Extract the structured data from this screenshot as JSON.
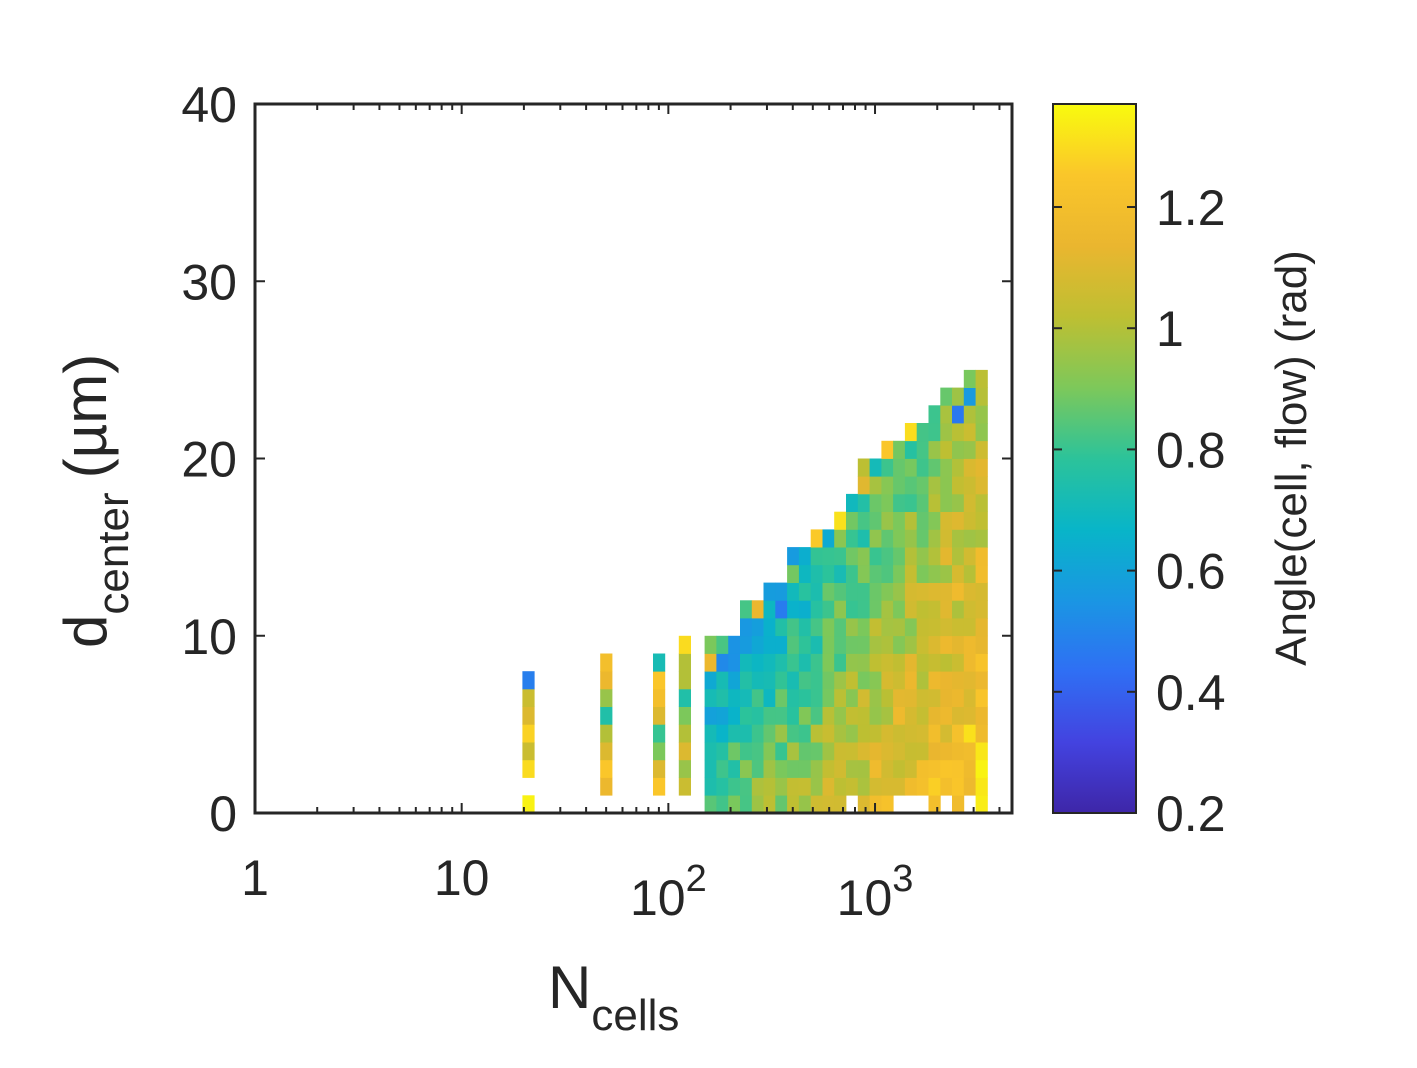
{
  "chart_data": {
    "type": "heatmap",
    "title": "",
    "xlabel": "N",
    "xlabel_sub": "cells",
    "ylabel": "d",
    "ylabel_sub": "center",
    "ylabel_unit": "(µm)",
    "x_scale": "log",
    "xlim": [
      1,
      4600
    ],
    "ylim": [
      0,
      40
    ],
    "x_ticks": [
      {
        "value": 1,
        "base": "1",
        "exp": ""
      },
      {
        "value": 10,
        "base": "10",
        "exp": ""
      },
      {
        "value": 100,
        "base": "10",
        "exp": "2"
      },
      {
        "value": 1000,
        "base": "10",
        "exp": "3"
      }
    ],
    "y_ticks": [
      "0",
      "10",
      "20",
      "30",
      "40"
    ],
    "colorbar": {
      "label": "Angle(cell, flow) (rad)",
      "range": [
        0.2,
        1.37
      ],
      "ticks": [
        "0.2",
        "0.4",
        "0.6",
        "0.8",
        "1",
        "1.2"
      ],
      "colormap": "parula"
    },
    "bin_width_log10": 0.057,
    "bin_height": 1,
    "grid": false,
    "cells": [
      [
        21,
        0,
        1.35
      ],
      [
        21,
        2,
        1.3
      ],
      [
        21,
        3,
        1.05
      ],
      [
        21,
        4,
        1.28
      ],
      [
        21,
        5,
        1.1
      ],
      [
        21,
        6,
        1.05
      ],
      [
        21,
        7,
        0.48
      ],
      [
        50,
        1,
        1.15
      ],
      [
        50,
        2,
        1.25
      ],
      [
        50,
        3,
        1.1
      ],
      [
        50,
        4,
        1.0
      ],
      [
        50,
        5,
        0.75
      ],
      [
        50,
        6,
        0.95
      ],
      [
        50,
        7,
        1.15
      ],
      [
        50,
        8,
        1.2
      ],
      [
        90,
        1,
        1.25
      ],
      [
        90,
        2,
        1.1
      ],
      [
        90,
        3,
        0.9
      ],
      [
        90,
        4,
        0.8
      ],
      [
        90,
        5,
        1.1
      ],
      [
        90,
        6,
        1.2
      ],
      [
        90,
        7,
        1.25
      ],
      [
        90,
        8,
        0.72
      ],
      [
        120,
        1,
        1.05
      ],
      [
        120,
        2,
        0.95
      ],
      [
        120,
        3,
        1.1
      ],
      [
        120,
        4,
        1.0
      ],
      [
        120,
        5,
        0.9
      ],
      [
        120,
        6,
        0.75
      ],
      [
        120,
        7,
        1.0
      ],
      [
        120,
        8,
        1.0
      ],
      [
        120,
        9,
        1.3
      ]
    ],
    "region": {
      "x_start": 160,
      "x_end": 3600,
      "top_edge": [
        [
          160,
          10
        ],
        [
          220,
          12
        ],
        [
          300,
          13
        ],
        [
          400,
          15
        ],
        [
          500,
          16
        ],
        [
          600,
          17
        ],
        [
          700,
          18
        ],
        [
          850,
          20
        ],
        [
          1100,
          21
        ],
        [
          1400,
          22
        ],
        [
          1700,
          23
        ],
        [
          2100,
          24
        ],
        [
          2600,
          25
        ],
        [
          3600,
          26
        ]
      ]
    }
  }
}
